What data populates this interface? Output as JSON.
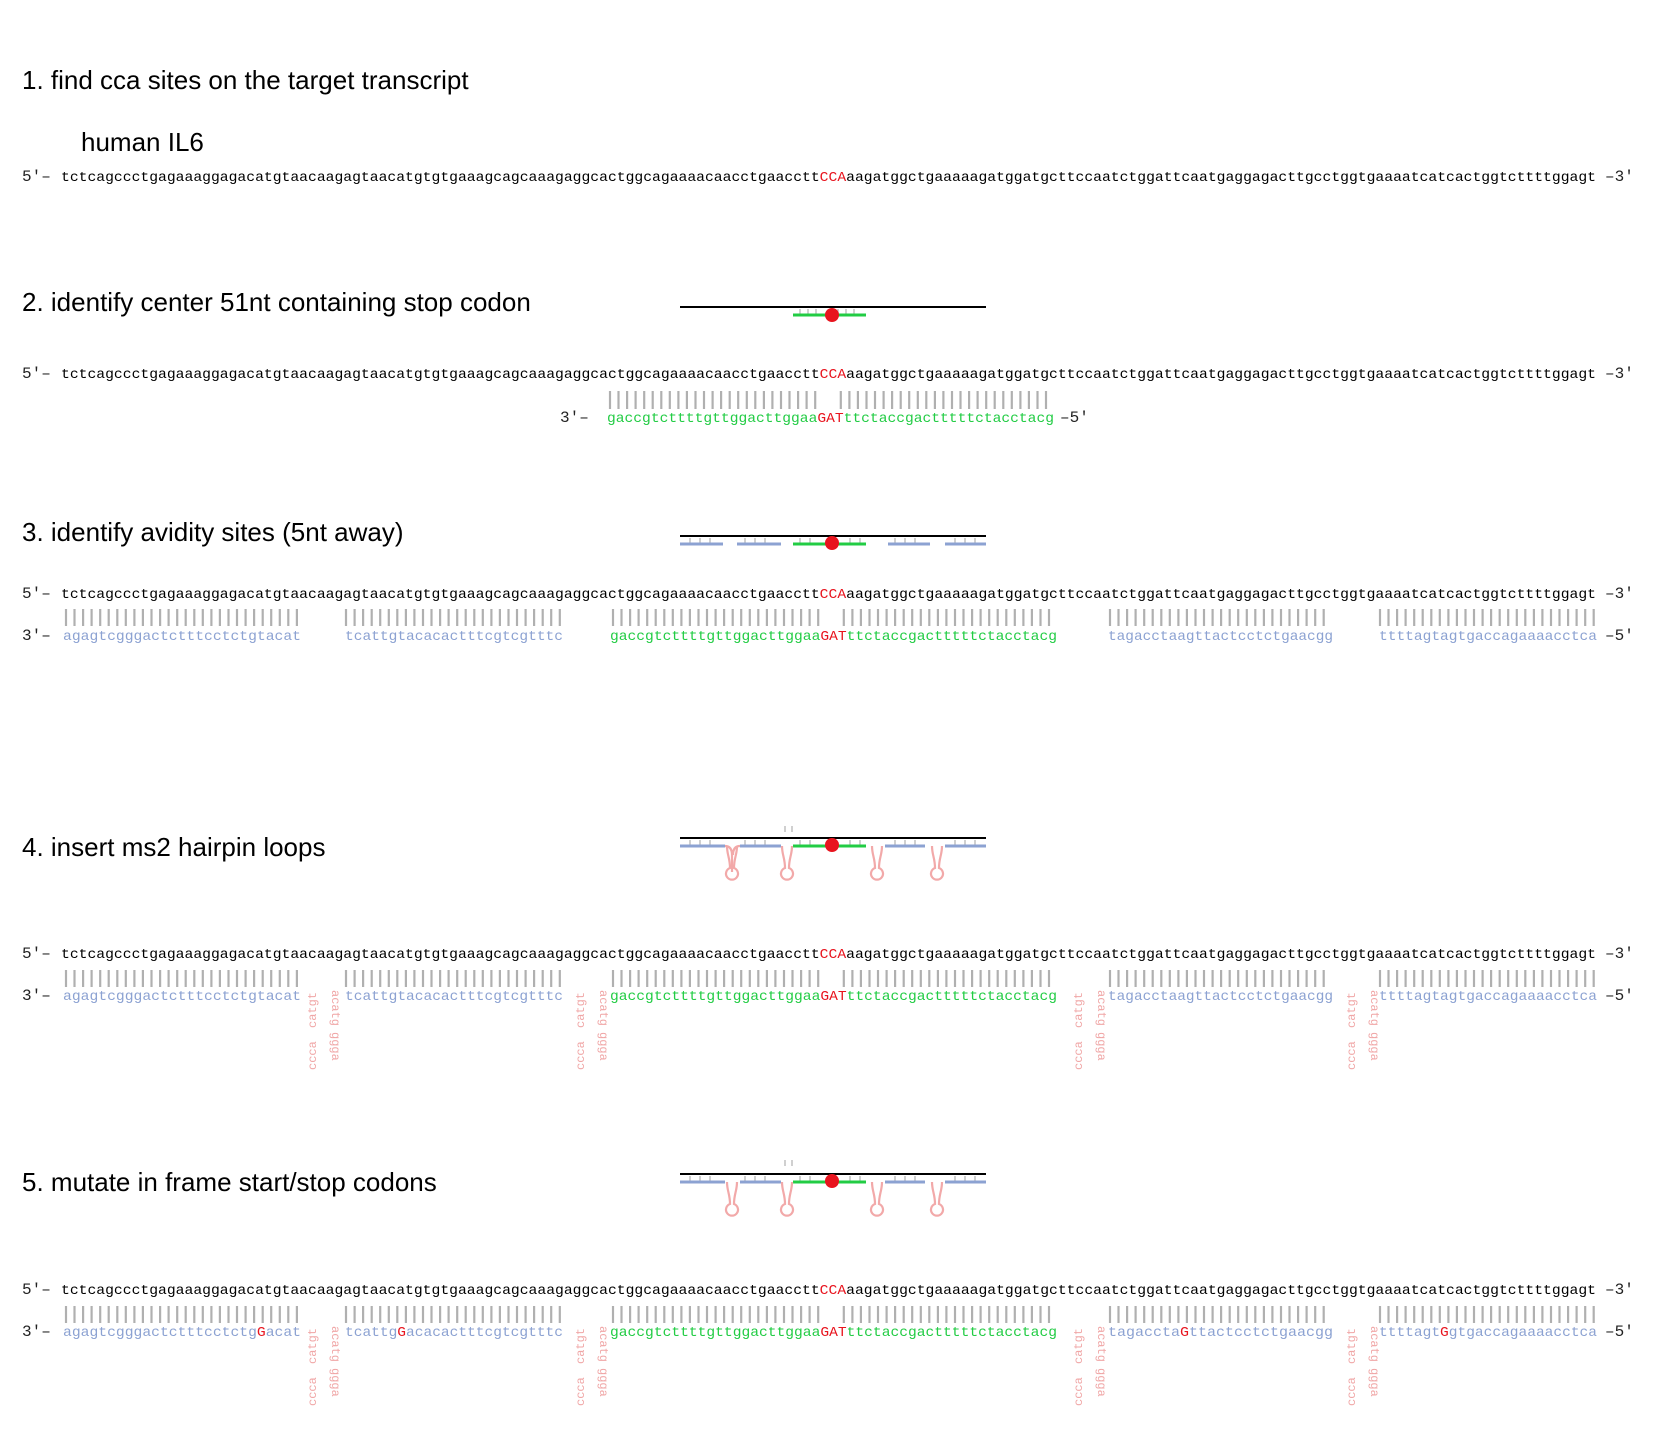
{
  "colors": {
    "target": "#000000",
    "site": "#e8141e",
    "center_probe": "#22cc44",
    "avidity_probe": "#8ca2d2",
    "pairing": "#b0b0b0",
    "hairpin": "#f2a9a9"
  },
  "headings": {
    "step1": "1. find cca sites on the target transcript",
    "step1_sub": "human IL6",
    "step2": "2. identify center 51nt containing stop codon",
    "step3": "3. identify avidity sites (5nt away)",
    "step4": "4. insert ms2 hairpin loops",
    "step5": "5. mutate in frame start/stop codons"
  },
  "target": {
    "five_prime": "5′–",
    "three_prime": "–3′",
    "seq_pre": "tctcagccctgagaaaggagacatgtaacaagagtaacatgtgtgaaagcagcaaagaggcactggcagaaaacaacctgaacctt",
    "site": "CCA",
    "seq_post": "aagatggctgaaaaagatggatgcttccaatctggattcaatgaggagacttgcctggtgaaaatcatcactggtcttttggagt"
  },
  "probe_labels": {
    "three_prime": "3′–",
    "five_prime": "–5′"
  },
  "center_probe": {
    "pre": "gaccgtcttttgttggacttggaa",
    "site": "GAT",
    "post": "ttctaccgactttttctacctacg"
  },
  "avidity_probes": [
    "agagtcgggactctttcctctgtacat",
    "tcattgtacacactttcgtcgtttc",
    "tagacctaagttactcctctgaacgg",
    "ttttagtagtgaccagaaaacctca"
  ],
  "mutated_probes": [
    {
      "pre": "agagtcgggactctttcctctg",
      "mut": "G",
      "post": "acat"
    },
    {
      "pre": "tcattg",
      "mut": "G",
      "post": "acacactttcgtcgtttc"
    },
    {
      "pre": "tagaccta",
      "mut": "G",
      "post": "ttactcctctgaacgg"
    },
    {
      "pre": "ttttagt",
      "mut": "G",
      "post": "gtgaccagaaaacctca"
    }
  ],
  "hairpin_seq": {
    "left": "catgt",
    "left_tail": "ccca",
    "right": "acatg",
    "right_tail": "ggga"
  }
}
